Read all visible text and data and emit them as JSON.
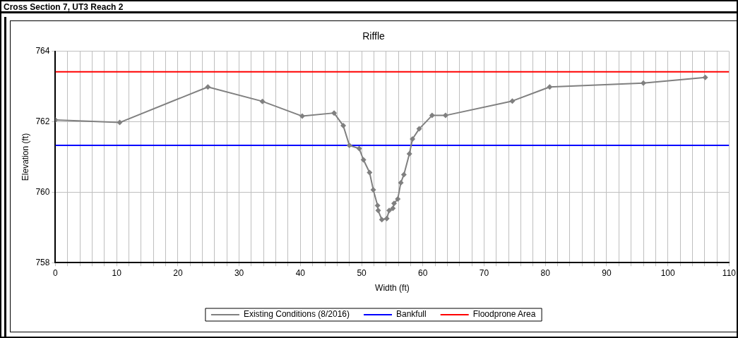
{
  "chart_data": {
    "type": "line",
    "title": "Riffle",
    "subtitle": "Cross Section 7, UT3 Reach 2",
    "xlabel": "Width (ft)",
    "ylabel": "Elevation (ft)",
    "series": [
      {
        "name": "Existing Conditions (8/2016)",
        "color": "#808080",
        "marker": "diamond",
        "x": [
          0,
          10.5,
          24.9,
          33.8,
          40.3,
          45.5,
          47.0,
          48.0,
          49.6,
          50.3,
          51.3,
          51.9,
          52.6,
          52.7,
          53.3,
          54.1,
          54.5,
          55.1,
          55.3,
          55.9,
          56.4,
          56.9,
          57.8,
          58.3,
          59.4,
          61.5,
          63.7,
          74.6,
          80.7,
          96.0,
          106.1
        ],
        "values": [
          762.05,
          761.98,
          762.99,
          762.58,
          762.16,
          762.25,
          761.89,
          761.33,
          761.24,
          760.92,
          760.56,
          760.07,
          759.62,
          759.48,
          759.22,
          759.25,
          759.48,
          759.54,
          759.68,
          759.81,
          760.27,
          760.5,
          761.09,
          761.51,
          761.8,
          762.18,
          762.18,
          762.59,
          762.99,
          763.1,
          763.26
        ]
      },
      {
        "name": "Bankfull",
        "color": "#0000ff",
        "marker": "none",
        "x": [
          0,
          110
        ],
        "values": [
          761.33,
          761.33
        ]
      },
      {
        "name": "Floodprone Area",
        "color": "#ff0000",
        "marker": "none",
        "x": [
          0,
          110
        ],
        "values": [
          763.42,
          763.42
        ]
      }
    ],
    "xlim": [
      0,
      110
    ],
    "xticks": [
      0,
      {
        "value": 2,
        "label": null
      },
      {
        "value": 4,
        "label": null
      },
      {
        "value": 6,
        "label": null
      },
      {
        "value": 8,
        "label": null
      },
      10,
      {
        "value": 12,
        "label": null
      },
      {
        "value": 14,
        "label": null
      },
      {
        "value": 16,
        "label": null
      },
      {
        "value": 18,
        "label": null
      },
      20,
      {
        "value": 22,
        "label": null
      },
      {
        "value": 24,
        "label": null
      },
      {
        "value": 26,
        "label": null
      },
      {
        "value": 28,
        "label": null
      },
      30,
      {
        "value": 32,
        "label": null
      },
      {
        "value": 34,
        "label": null
      },
      {
        "value": 36,
        "label": null
      },
      {
        "value": 38,
        "label": null
      },
      40,
      {
        "value": 42,
        "label": null
      },
      {
        "value": 44,
        "label": null
      },
      {
        "value": 46,
        "label": null
      },
      {
        "value": 48,
        "label": null
      },
      50,
      {
        "value": 52,
        "label": null
      },
      {
        "value": 54,
        "label": null
      },
      {
        "value": 56,
        "label": null
      },
      {
        "value": 58,
        "label": null
      },
      60,
      {
        "value": 62,
        "label": null
      },
      {
        "value": 64,
        "label": null
      },
      {
        "value": 66,
        "label": null
      },
      {
        "value": 68,
        "label": null
      },
      70,
      {
        "value": 72,
        "label": null
      },
      {
        "value": 74,
        "label": null
      },
      {
        "value": 76,
        "label": null
      },
      {
        "value": 78,
        "label": null
      },
      80,
      {
        "value": 82,
        "label": null
      },
      {
        "value": 84,
        "label": null
      },
      {
        "value": 86,
        "label": null
      },
      {
        "value": 88,
        "label": null
      },
      90,
      {
        "value": 92,
        "label": null
      },
      {
        "value": 94,
        "label": null
      },
      {
        "value": 96,
        "label": null
      },
      {
        "value": 98,
        "label": null
      },
      100,
      {
        "value": 102,
        "label": null
      },
      {
        "value": 104,
        "label": null
      },
      {
        "value": 106,
        "label": null
      },
      {
        "value": 108,
        "label": null
      },
      110
    ],
    "ylim": [
      758,
      764
    ],
    "yticks": [
      758,
      760,
      762,
      764
    ],
    "grid": true,
    "legend": "bottom",
    "line_style": "solid"
  }
}
